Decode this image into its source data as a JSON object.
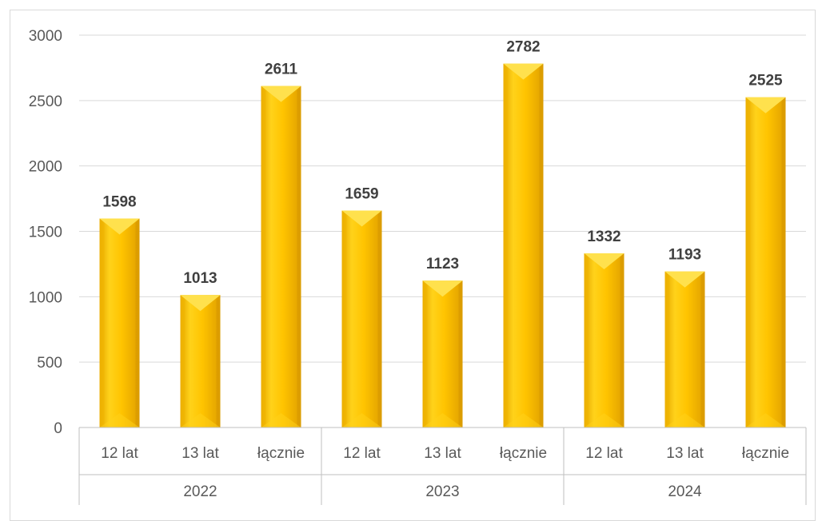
{
  "chart_data": {
    "type": "bar",
    "groups": [
      {
        "name": "2022",
        "categories": [
          "12 lat",
          "13 lat",
          "łącznie"
        ],
        "values": [
          1598,
          1013,
          2611
        ]
      },
      {
        "name": "2023",
        "categories": [
          "12 lat",
          "13 lat",
          "łącznie"
        ],
        "values": [
          1659,
          1123,
          2782
        ]
      },
      {
        "name": "2024",
        "categories": [
          "12 lat",
          "13 lat",
          "łącznie"
        ],
        "values": [
          1332,
          1193,
          2525
        ]
      }
    ],
    "ylim": [
      0,
      3000
    ],
    "yticks": [
      0,
      500,
      1000,
      1500,
      2000,
      2500,
      3000
    ],
    "grid": true,
    "data_labels": true,
    "colors": {
      "bar": "#ffc000",
      "bar_light": "#ffe14d",
      "bar_dark": "#d99a00",
      "grid": "#d9d9d9",
      "axis": "#bfbfbf"
    }
  }
}
